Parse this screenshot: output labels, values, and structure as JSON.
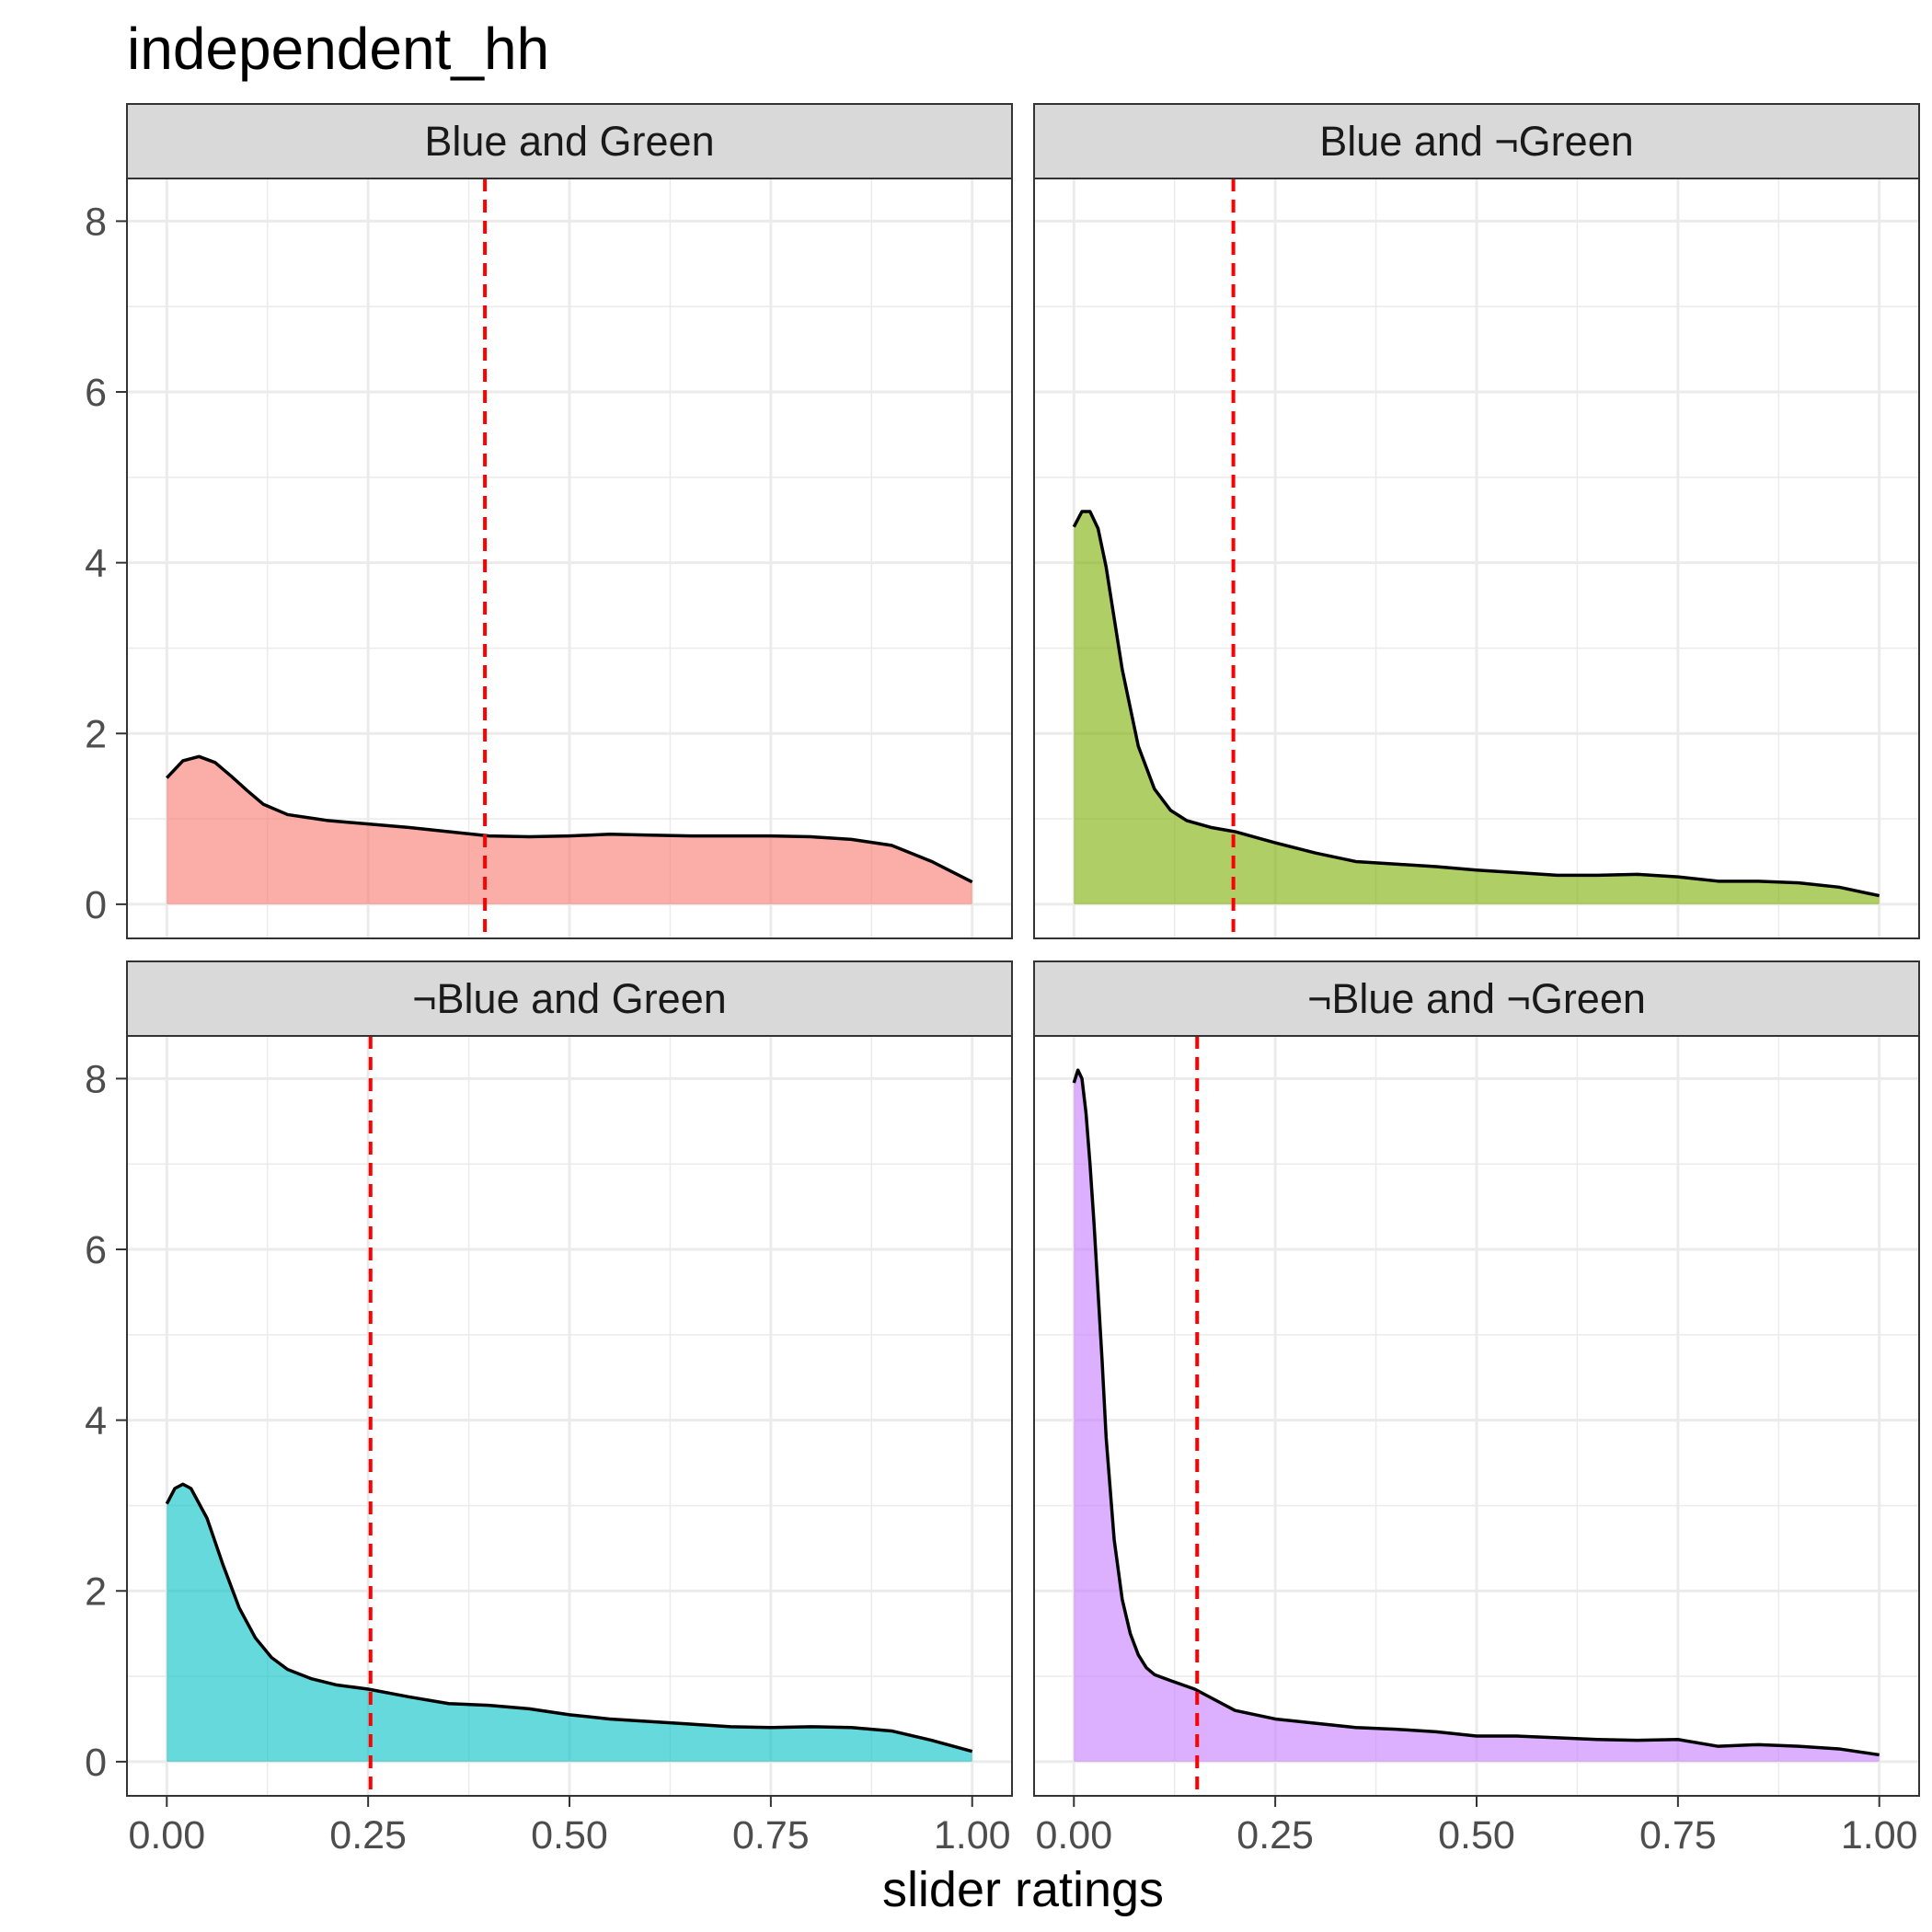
{
  "chart_data": {
    "type": "area",
    "title": "independent_hh",
    "xlabel": "slider ratings",
    "ylabel": "",
    "xlim": [
      0,
      1
    ],
    "ylim": [
      -0.4,
      8.5
    ],
    "x_ticks": [
      "0.00",
      "0.25",
      "0.50",
      "0.75",
      "1.00"
    ],
    "y_ticks": [
      "0",
      "2",
      "4",
      "6",
      "8"
    ],
    "grid": true,
    "legend": "none",
    "panels": [
      {
        "label": "Blue and Green",
        "fill": "#F8766D",
        "mean_line": 0.395,
        "x": [
          0,
          0.02,
          0.04,
          0.06,
          0.08,
          0.1,
          0.12,
          0.15,
          0.2,
          0.25,
          0.3,
          0.35,
          0.4,
          0.45,
          0.5,
          0.55,
          0.6,
          0.65,
          0.7,
          0.75,
          0.8,
          0.85,
          0.9,
          0.95,
          1.0
        ],
        "y": [
          1.48,
          1.68,
          1.73,
          1.66,
          1.5,
          1.33,
          1.17,
          1.05,
          0.98,
          0.94,
          0.9,
          0.85,
          0.8,
          0.79,
          0.8,
          0.82,
          0.81,
          0.8,
          0.8,
          0.8,
          0.79,
          0.76,
          0.69,
          0.5,
          0.26
        ]
      },
      {
        "label": "Blue and ¬Green",
        "fill": "#7CAE00",
        "mean_line": 0.198,
        "x": [
          0,
          0.01,
          0.02,
          0.03,
          0.04,
          0.05,
          0.06,
          0.08,
          0.1,
          0.12,
          0.14,
          0.17,
          0.2,
          0.25,
          0.3,
          0.35,
          0.4,
          0.45,
          0.5,
          0.55,
          0.6,
          0.65,
          0.7,
          0.75,
          0.8,
          0.85,
          0.9,
          0.95,
          1.0
        ],
        "y": [
          4.42,
          4.6,
          4.6,
          4.4,
          3.95,
          3.35,
          2.75,
          1.85,
          1.35,
          1.1,
          0.98,
          0.9,
          0.85,
          0.72,
          0.6,
          0.5,
          0.47,
          0.44,
          0.4,
          0.37,
          0.34,
          0.34,
          0.35,
          0.32,
          0.27,
          0.27,
          0.25,
          0.2,
          0.1
        ]
      },
      {
        "label": "¬Blue and Green",
        "fill": "#00BFC4",
        "mean_line": 0.253,
        "x": [
          0,
          0.01,
          0.02,
          0.03,
          0.05,
          0.07,
          0.09,
          0.11,
          0.13,
          0.15,
          0.18,
          0.21,
          0.25,
          0.3,
          0.35,
          0.4,
          0.45,
          0.5,
          0.55,
          0.6,
          0.65,
          0.7,
          0.75,
          0.8,
          0.85,
          0.9,
          0.95,
          1.0
        ],
        "y": [
          3.02,
          3.2,
          3.25,
          3.2,
          2.85,
          2.3,
          1.8,
          1.45,
          1.22,
          1.08,
          0.97,
          0.9,
          0.85,
          0.76,
          0.68,
          0.66,
          0.62,
          0.55,
          0.5,
          0.47,
          0.44,
          0.41,
          0.4,
          0.41,
          0.4,
          0.36,
          0.25,
          0.12
        ]
      },
      {
        "label": "¬Blue and ¬Green",
        "fill": "#C77CFF",
        "mean_line": 0.153,
        "x": [
          0,
          0.005,
          0.01,
          0.015,
          0.02,
          0.025,
          0.03,
          0.035,
          0.04,
          0.05,
          0.06,
          0.07,
          0.08,
          0.09,
          0.1,
          0.12,
          0.15,
          0.2,
          0.25,
          0.3,
          0.35,
          0.4,
          0.45,
          0.5,
          0.55,
          0.6,
          0.65,
          0.7,
          0.75,
          0.8,
          0.85,
          0.9,
          0.95,
          1.0
        ],
        "y": [
          7.95,
          8.1,
          8.0,
          7.6,
          7.0,
          6.3,
          5.5,
          4.7,
          3.8,
          2.6,
          1.9,
          1.5,
          1.25,
          1.1,
          1.02,
          0.95,
          0.85,
          0.6,
          0.5,
          0.45,
          0.4,
          0.38,
          0.35,
          0.3,
          0.3,
          0.28,
          0.26,
          0.25,
          0.26,
          0.18,
          0.2,
          0.18,
          0.15,
          0.08
        ]
      }
    ]
  },
  "style": {
    "strip_bg": "#D9D9D9",
    "mean_line_color": "#FF0000",
    "grid_color": "#EBEBEB"
  }
}
